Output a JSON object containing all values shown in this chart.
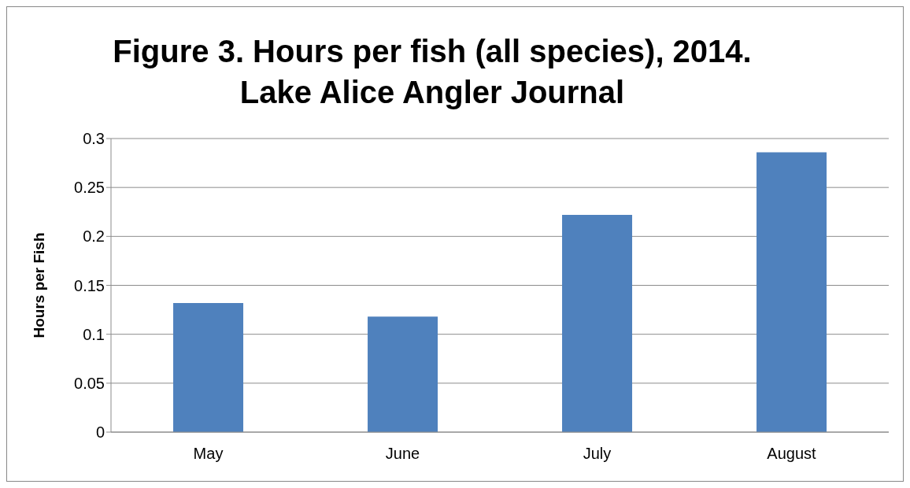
{
  "chart_data": {
    "type": "bar",
    "title": "Figure 3. Hours per fish (all species), 2014.\nLake Alice Angler Journal",
    "ylabel": "Hours per Fish",
    "categories": [
      "May",
      "June",
      "July",
      "August"
    ],
    "series": [
      {
        "color": "#4f81bd",
        "values": [
          0.132,
          0.118,
          0.222,
          0.286
        ]
      }
    ],
    "ylim": [
      0,
      0.3
    ],
    "yticks": [
      0,
      0.05,
      0.1,
      0.15,
      0.2,
      0.25,
      0.3
    ],
    "grid": "y"
  }
}
